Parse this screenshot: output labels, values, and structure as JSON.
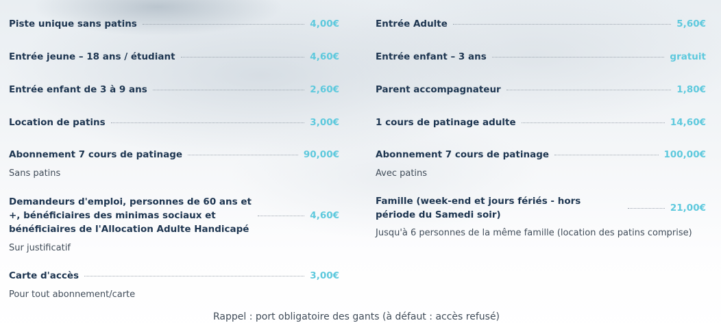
{
  "left": [
    {
      "label": "Piste unique sans patins",
      "price": "4,00€"
    },
    {
      "label": "Entrée jeune – 18 ans / étudiant",
      "price": "4,60€"
    },
    {
      "label": "Entrée enfant de 3 à 9 ans",
      "price": "2,60€"
    },
    {
      "label": "Location de patins",
      "price": "3,00€"
    },
    {
      "label": "Abonnement 7 cours de patinage",
      "price": "90,00€",
      "note": "Sans patins"
    },
    {
      "label": "Demandeurs d'emploi, personnes de 60 ans et +, bénéficiaires des minimas sociaux et bénéficiaires de l'Allocation Adulte Handicapé",
      "price": "4,60€",
      "note": "Sur justificatif"
    },
    {
      "label": "Carte d'accès",
      "price": "3,00€",
      "note": "Pour tout abonnement/carte"
    }
  ],
  "right": [
    {
      "label": "Entrée Adulte",
      "price": "5,60€"
    },
    {
      "label": "Entrée enfant – 3 ans",
      "price": "gratuit"
    },
    {
      "label": "Parent accompagnateur",
      "price": "1,80€"
    },
    {
      "label": "1 cours de patinage adulte",
      "price": "14,60€"
    },
    {
      "label": "Abonnement 7 cours de patinage",
      "price": "100,00€",
      "note": "Avec patins"
    },
    {
      "label": "Famille (week-end et jours fériés - hors période du Samedi soir)",
      "price": "21,00€",
      "note": "Jusqu'à 6 personnes de la même famille (location des patins comprise)"
    }
  ],
  "footer": "Rappel : port obligatoire des gants (à défaut : accès refusé)"
}
